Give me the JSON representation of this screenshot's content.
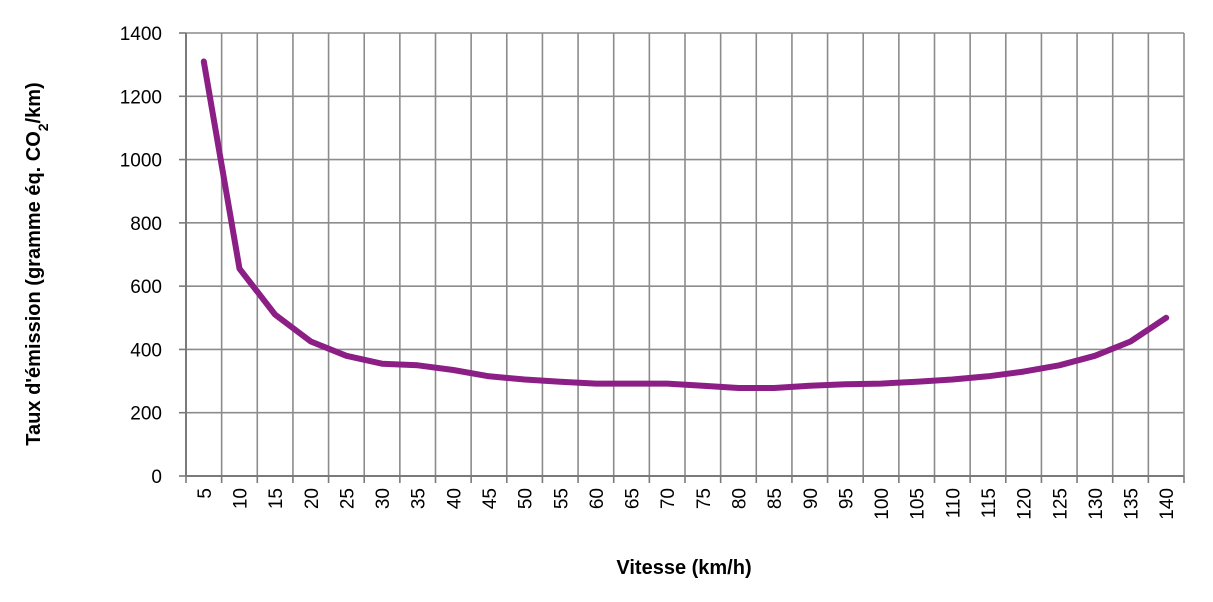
{
  "chart_data": {
    "type": "line",
    "title": "",
    "xlabel": "Vitesse (km/h)",
    "ylabel": {
      "main": "Taux d'émission  (gramme éq. CO",
      "subscript": "2",
      "suffix": "/km)"
    },
    "ylim": [
      0,
      1400
    ],
    "yticks": [
      "0",
      "200",
      "400",
      "600",
      "800",
      "1000",
      "1200",
      "1400"
    ],
    "categories": [
      "5",
      "10",
      "15",
      "20",
      "25",
      "30",
      "35",
      "40",
      "45",
      "50",
      "55",
      "60",
      "65",
      "70",
      "75",
      "80",
      "85",
      "90",
      "95",
      "100",
      "105",
      "110",
      "115",
      "120",
      "125",
      "130",
      "135",
      "140"
    ],
    "grid": true,
    "series": [
      {
        "color": "#8B1F86",
        "values": [
          1310,
          655,
          510,
          425,
          380,
          355,
          350,
          335,
          315,
          305,
          298,
          292,
          292,
          292,
          285,
          278,
          278,
          285,
          290,
          292,
          298,
          305,
          315,
          330,
          350,
          380,
          425,
          500
        ]
      }
    ]
  }
}
